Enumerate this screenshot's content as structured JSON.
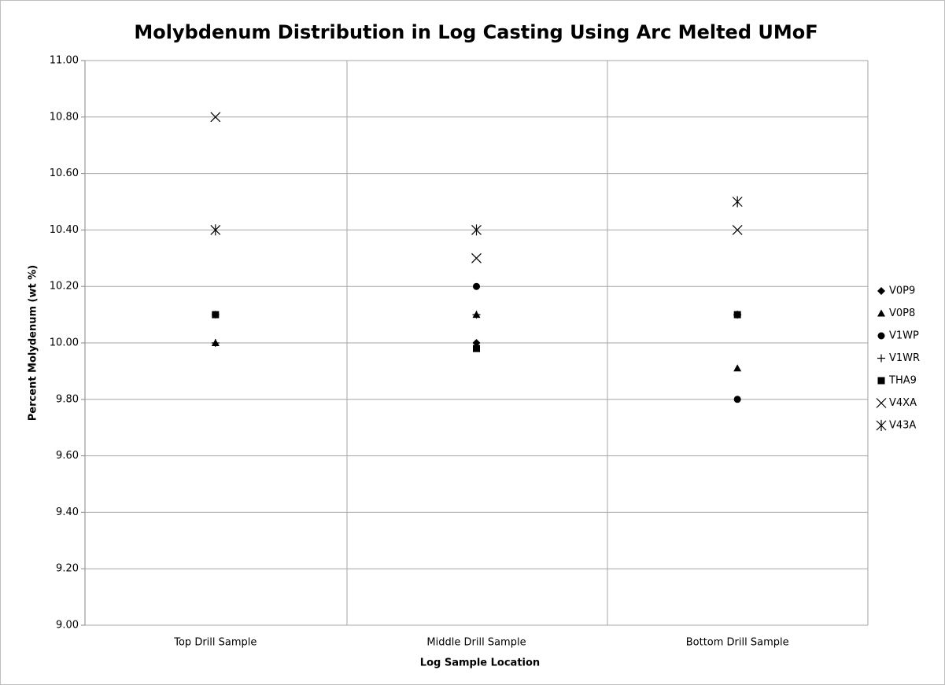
{
  "chart_data": {
    "type": "scatter",
    "title": "Molybdenum Distribution in Log Casting Using Arc Melted UMoF",
    "xlabel": "Log Sample Location",
    "ylabel": "Percent Molydenum (wt %)",
    "categories": [
      "Top Drill Sample",
      "Middle Drill Sample",
      "Bottom Drill Sample"
    ],
    "series": [
      {
        "name": "V0P9",
        "color": "#000000",
        "marker": "diamond",
        "values": [
          10.1,
          10.0,
          10.1
        ]
      },
      {
        "name": "V0P8",
        "color": "#000000",
        "marker": "triangle",
        "values": [
          10.0,
          10.1,
          9.91
        ]
      },
      {
        "name": "V1WP",
        "color": "#000000",
        "marker": "circle",
        "values": [
          10.1,
          10.2,
          9.8
        ]
      },
      {
        "name": "V1WR",
        "color": "#000000",
        "marker": "plus",
        "values": [
          10.0,
          10.1,
          10.1
        ]
      },
      {
        "name": "THA9",
        "color": "#000000",
        "marker": "square",
        "values": [
          10.1,
          9.98,
          10.1
        ]
      },
      {
        "name": "V4XA",
        "color": "#000000",
        "marker": "x",
        "values": [
          10.8,
          10.3,
          10.4
        ]
      },
      {
        "name": "V43A",
        "color": "#000000",
        "marker": "asterisk",
        "values": [
          10.4,
          10.4,
          10.5
        ]
      }
    ],
    "ylim": [
      9,
      11
    ],
    "yticks": [
      {
        "value": 9,
        "label": "9.00"
      },
      {
        "value": 9.2,
        "label": "9.20"
      },
      {
        "value": 9.4,
        "label": "9.40"
      },
      {
        "value": 9.6,
        "label": "9.60"
      },
      {
        "value": 9.8,
        "label": "9.80"
      },
      {
        "value": 10,
        "label": "10.00"
      },
      {
        "value": 10.2,
        "label": "10.20"
      },
      {
        "value": 10.4,
        "label": "10.40"
      },
      {
        "value": 10.6,
        "label": "10.60"
      },
      {
        "value": 10.8,
        "label": "10.80"
      },
      {
        "value": 11,
        "label": "11.00"
      }
    ],
    "grid": true,
    "legend": "right"
  }
}
